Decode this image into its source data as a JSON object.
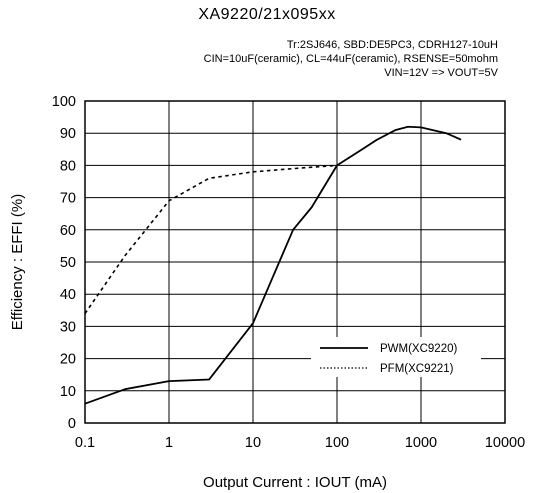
{
  "chart_data": {
    "type": "line",
    "title": "XA9220/21x095xx",
    "conditions": [
      "Tr:2SJ646, SBD:DE5PC3, CDRH127-10uH",
      "CIN=10uF(ceramic), CL=44uF(ceramic), RSENSE=50mohm",
      "VIN=12V => VOUT=5V"
    ],
    "xlabel": "Output Current : IOUT (mA)",
    "ylabel": "Efficiency : EFFI (%)",
    "xscale": "log",
    "xlim": [
      0.1,
      10000
    ],
    "ylim": [
      0,
      100
    ],
    "xticks": [
      "0.1",
      "1",
      "10",
      "100",
      "1000",
      "10000"
    ],
    "yticks": [
      "0",
      "10",
      "20",
      "30",
      "40",
      "50",
      "60",
      "70",
      "80",
      "90",
      "100"
    ],
    "grid": true,
    "legend_position": "lower-right",
    "series": [
      {
        "name": "PWM(XC9220)",
        "style": "solid",
        "points": [
          [
            0.1,
            6
          ],
          [
            0.3,
            10.5
          ],
          [
            1,
            13
          ],
          [
            3,
            13.5
          ],
          [
            10,
            31
          ],
          [
            30,
            60
          ],
          [
            50,
            67
          ],
          [
            100,
            80
          ],
          [
            200,
            85
          ],
          [
            300,
            88
          ],
          [
            500,
            91
          ],
          [
            700,
            92
          ],
          [
            1000,
            91.8
          ],
          [
            2000,
            90
          ],
          [
            3000,
            88
          ]
        ]
      },
      {
        "name": "PFM(XC9221)",
        "style": "dotted",
        "points": [
          [
            0.1,
            34
          ],
          [
            0.3,
            52
          ],
          [
            1,
            69
          ],
          [
            3,
            76
          ],
          [
            10,
            78
          ],
          [
            30,
            79
          ],
          [
            100,
            80
          ]
        ]
      }
    ]
  }
}
